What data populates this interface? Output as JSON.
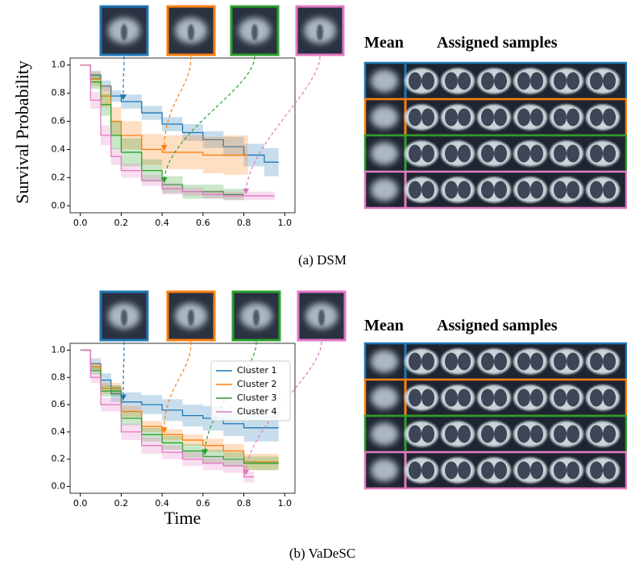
{
  "chart_data": [
    {
      "type": "line",
      "step": true,
      "ylabel": "Survival Probability",
      "caption": "(a) DSM",
      "grid_headers": [
        "Mean",
        "Assigned samples"
      ],
      "xlim": [
        -0.05,
        1.05
      ],
      "ylim": [
        -0.05,
        1.05
      ],
      "xticks": [
        {
          "value": 0,
          "label": "0.0"
        },
        {
          "value": 0.2,
          "label": "0.2"
        },
        {
          "value": 0.4,
          "label": "0.4"
        },
        {
          "value": 0.6,
          "label": "0.6"
        },
        {
          "value": 0.8,
          "label": "0.8"
        },
        {
          "value": 1,
          "label": "1.0"
        }
      ],
      "yticks": [
        {
          "value": 0,
          "label": "0.0"
        },
        {
          "value": 0.2,
          "label": "0.2"
        },
        {
          "value": 0.4,
          "label": "0.4"
        },
        {
          "value": 0.6,
          "label": "0.6"
        },
        {
          "value": 0.8,
          "label": "0.8"
        },
        {
          "value": 1,
          "label": "1.0"
        }
      ],
      "series": [
        {
          "color": "#1f77b4",
          "x": [
            0,
            0.05,
            0.1,
            0.15,
            0.2,
            0.3,
            0.4,
            0.5,
            0.6,
            0.7,
            0.8,
            0.9,
            0.97
          ],
          "values": [
            1,
            0.93,
            0.85,
            0.78,
            0.74,
            0.66,
            0.58,
            0.52,
            0.47,
            0.42,
            0.36,
            0.31,
            0.31
          ],
          "band": [
            0,
            0.03,
            0.04,
            0.04,
            0.05,
            0.05,
            0.05,
            0.06,
            0.06,
            0.07,
            0.08,
            0.1,
            0.1
          ]
        },
        {
          "color": "#ff7f0e",
          "x": [
            0,
            0.05,
            0.1,
            0.15,
            0.2,
            0.3,
            0.4,
            0.5,
            0.6,
            0.7,
            0.82
          ],
          "values": [
            1,
            0.9,
            0.78,
            0.6,
            0.5,
            0.4,
            0.38,
            0.38,
            0.36,
            0.36,
            0.36
          ],
          "band": [
            0,
            0.05,
            0.08,
            0.1,
            0.1,
            0.11,
            0.12,
            0.12,
            0.13,
            0.14,
            0.14
          ]
        },
        {
          "color": "#2ca02c",
          "x": [
            0,
            0.05,
            0.1,
            0.15,
            0.2,
            0.3,
            0.4,
            0.5,
            0.6,
            0.7,
            0.8
          ],
          "values": [
            1,
            0.88,
            0.72,
            0.5,
            0.38,
            0.25,
            0.15,
            0.1,
            0.1,
            0.08,
            0.08
          ],
          "band": [
            0,
            0.05,
            0.08,
            0.1,
            0.1,
            0.08,
            0.06,
            0.05,
            0.05,
            0.04,
            0.04
          ]
        },
        {
          "color": "#e377c2",
          "x": [
            0,
            0.05,
            0.1,
            0.15,
            0.2,
            0.3,
            0.4,
            0.5,
            0.6,
            0.7,
            0.8,
            0.95
          ],
          "values": [
            1,
            0.75,
            0.5,
            0.35,
            0.25,
            0.18,
            0.12,
            0.1,
            0.08,
            0.07,
            0.07,
            0.07
          ],
          "band": [
            0,
            0.06,
            0.07,
            0.06,
            0.05,
            0.04,
            0.04,
            0.03,
            0.03,
            0.03,
            0.03,
            0.03
          ]
        }
      ]
    },
    {
      "type": "line",
      "step": true,
      "xlabel": "Time",
      "caption": "(b) VaDeSC",
      "legend": "upper right",
      "grid_headers": [
        "Mean",
        "Assigned samples"
      ],
      "xlim": [
        -0.05,
        1.05
      ],
      "ylim": [
        -0.05,
        1.05
      ],
      "xticks": [
        {
          "value": 0,
          "label": "0.0"
        },
        {
          "value": 0.2,
          "label": "0.2"
        },
        {
          "value": 0.4,
          "label": "0.4"
        },
        {
          "value": 0.6,
          "label": "0.6"
        },
        {
          "value": 0.8,
          "label": "0.8"
        },
        {
          "value": 1,
          "label": "1.0"
        }
      ],
      "yticks": [
        {
          "value": 0,
          "label": "0.0"
        },
        {
          "value": 0.2,
          "label": "0.2"
        },
        {
          "value": 0.4,
          "label": "0.4"
        },
        {
          "value": 0.6,
          "label": "0.6"
        },
        {
          "value": 0.8,
          "label": "0.8"
        },
        {
          "value": 1,
          "label": "1.0"
        }
      ],
      "series": [
        {
          "name": "Cluster 1",
          "color": "#1f77b4",
          "x": [
            0,
            0.05,
            0.1,
            0.15,
            0.2,
            0.3,
            0.4,
            0.5,
            0.6,
            0.7,
            0.8,
            0.97
          ],
          "values": [
            1,
            0.9,
            0.78,
            0.68,
            0.62,
            0.6,
            0.56,
            0.52,
            0.5,
            0.46,
            0.43,
            0.43
          ],
          "band": [
            0,
            0.04,
            0.05,
            0.06,
            0.07,
            0.07,
            0.08,
            0.08,
            0.09,
            0.09,
            0.1,
            0.1
          ]
        },
        {
          "name": "Cluster 2",
          "color": "#ff7f0e",
          "x": [
            0,
            0.05,
            0.1,
            0.2,
            0.3,
            0.4,
            0.5,
            0.6,
            0.7,
            0.8,
            0.97
          ],
          "values": [
            1,
            0.88,
            0.72,
            0.55,
            0.44,
            0.38,
            0.34,
            0.3,
            0.26,
            0.18,
            0.18
          ],
          "band": [
            0,
            0.03,
            0.04,
            0.04,
            0.04,
            0.04,
            0.04,
            0.05,
            0.05,
            0.06,
            0.06
          ]
        },
        {
          "name": "Cluster 3",
          "color": "#2ca02c",
          "x": [
            0,
            0.05,
            0.1,
            0.2,
            0.3,
            0.4,
            0.5,
            0.6,
            0.7,
            0.8,
            0.97
          ],
          "values": [
            1,
            0.85,
            0.7,
            0.5,
            0.38,
            0.32,
            0.26,
            0.22,
            0.2,
            0.17,
            0.17
          ],
          "band": [
            0,
            0.03,
            0.04,
            0.05,
            0.05,
            0.05,
            0.05,
            0.05,
            0.05,
            0.05,
            0.05
          ]
        },
        {
          "name": "Cluster 4",
          "color": "#e377c2",
          "x": [
            0,
            0.05,
            0.1,
            0.2,
            0.3,
            0.4,
            0.5,
            0.6,
            0.7,
            0.8,
            0.85
          ],
          "values": [
            1,
            0.8,
            0.6,
            0.4,
            0.3,
            0.25,
            0.2,
            0.17,
            0.15,
            0.07,
            0.07
          ],
          "band": [
            0,
            0.04,
            0.05,
            0.06,
            0.06,
            0.05,
            0.05,
            0.05,
            0.05,
            0.04,
            0.04
          ]
        }
      ]
    }
  ]
}
